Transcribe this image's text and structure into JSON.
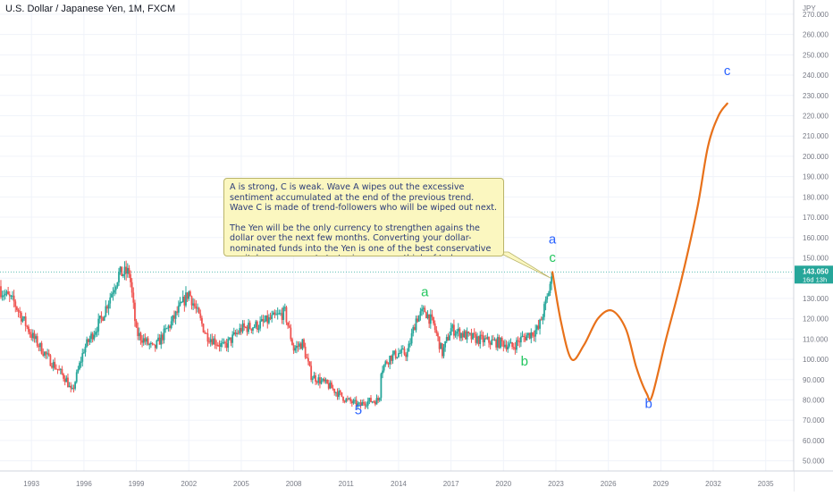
{
  "header": {
    "title": "U.S. Dollar / Japanese Yen, 1M, FXCM"
  },
  "price_axis": {
    "currency": "JPY",
    "labels": [
      "270.000",
      "260.000",
      "250.000",
      "240.000",
      "230.000",
      "220.000",
      "210.000",
      "200.000",
      "190.000",
      "180.000",
      "170.000",
      "160.000",
      "150.000",
      "140.000",
      "130.000",
      "120.000",
      "110.000",
      "100.000",
      "90.000",
      "80.000",
      "70.000",
      "60.000",
      "50.000"
    ]
  },
  "time_axis": {
    "labels": [
      "1993",
      "1996",
      "1999",
      "2002",
      "2005",
      "2008",
      "2011",
      "2014",
      "2017",
      "2020",
      "2023",
      "2026",
      "2029",
      "2032",
      "2035"
    ]
  },
  "last_price": {
    "value": "143.050",
    "countdown": "16d 13h",
    "color": "#26a69a"
  },
  "colors": {
    "up": "#26a69a",
    "down": "#ef5350",
    "projection": "#e8711a",
    "label_blue": "#2962ff",
    "label_green": "#22c55e"
  },
  "callout": {
    "paragraph1": "A is strong, C is weak. Wave A wipes out the excessive sentiment accumulated at the end of the previous trend. Wave C is made of trend-followers who will be wiped out next.",
    "paragraph2": "The Yen will be the only currency to strengthen agains the dollar over the next few months. Converting your dollar-nominated funds into the Yen is one of the best conservative capital management strategies you can think of today."
  },
  "wave_labels": [
    {
      "text": "5",
      "color": "blue",
      "year": 2011.7,
      "price": 73
    },
    {
      "text": "a",
      "color": "green",
      "year": 2015.5,
      "price": 131
    },
    {
      "text": "b",
      "color": "green",
      "year": 2021.2,
      "price": 97
    },
    {
      "text": "c",
      "color": "green",
      "year": 2022.8,
      "price": 148
    },
    {
      "text": "a",
      "color": "blue",
      "year": 2022.8,
      "price": 157
    },
    {
      "text": "b",
      "color": "blue",
      "year": 2028.3,
      "price": 76
    },
    {
      "text": "c",
      "color": "blue",
      "year": 2032.8,
      "price": 240
    }
  ],
  "chart_data": {
    "type": "candlestick",
    "title": "U.S. Dollar / Japanese Yen, 1M, FXCM",
    "ylabel": "JPY",
    "ylim": [
      45,
      277
    ],
    "xlim": [
      1991.2,
      2036.6
    ],
    "series": [
      {
        "name": "USD/JPY",
        "x": [
          1991.0,
          1992.0,
          1993.0,
          1994.0,
          1995.0,
          1995.3,
          1996.0,
          1997.0,
          1998.0,
          1998.6,
          1999.0,
          2000.0,
          2001.0,
          2002.0,
          2003.0,
          2004.0,
          2005.0,
          2006.0,
          2007.0,
          2007.5,
          2008.0,
          2008.5,
          2009.0,
          2010.0,
          2011.0,
          2011.8,
          2012.0,
          2012.9,
          2013.0,
          2013.5,
          2014.0,
          2014.5,
          2015.0,
          2015.5,
          2016.0,
          2016.5,
          2017.0,
          2018.0,
          2019.0,
          2020.0,
          2020.5,
          2021.0,
          2022.0,
          2022.5,
          2022.8
        ],
        "values": [
          136,
          128,
          112,
          100,
          90,
          83,
          105,
          120,
          142,
          143,
          113,
          105,
          118,
          133,
          112,
          106,
          115,
          117,
          121,
          123,
          105,
          108,
          92,
          87,
          80,
          77,
          79,
          80,
          95,
          101,
          103,
          103,
          120,
          124,
          117,
          103,
          115,
          111,
          109,
          108,
          106,
          110,
          115,
          130,
          143
        ]
      },
      {
        "name": "projection",
        "x": [
          2022.8,
          2023.3,
          2023.9,
          2024.6,
          2025.4,
          2026.2,
          2027.0,
          2027.6,
          2028.2,
          2028.5,
          2029.3,
          2030.2,
          2031.1,
          2031.7,
          2032.3,
          2032.8
        ],
        "values": [
          143,
          118,
          100,
          107,
          120,
          124,
          115,
          96,
          83,
          82,
          110,
          140,
          175,
          205,
          220,
          226
        ]
      }
    ]
  }
}
